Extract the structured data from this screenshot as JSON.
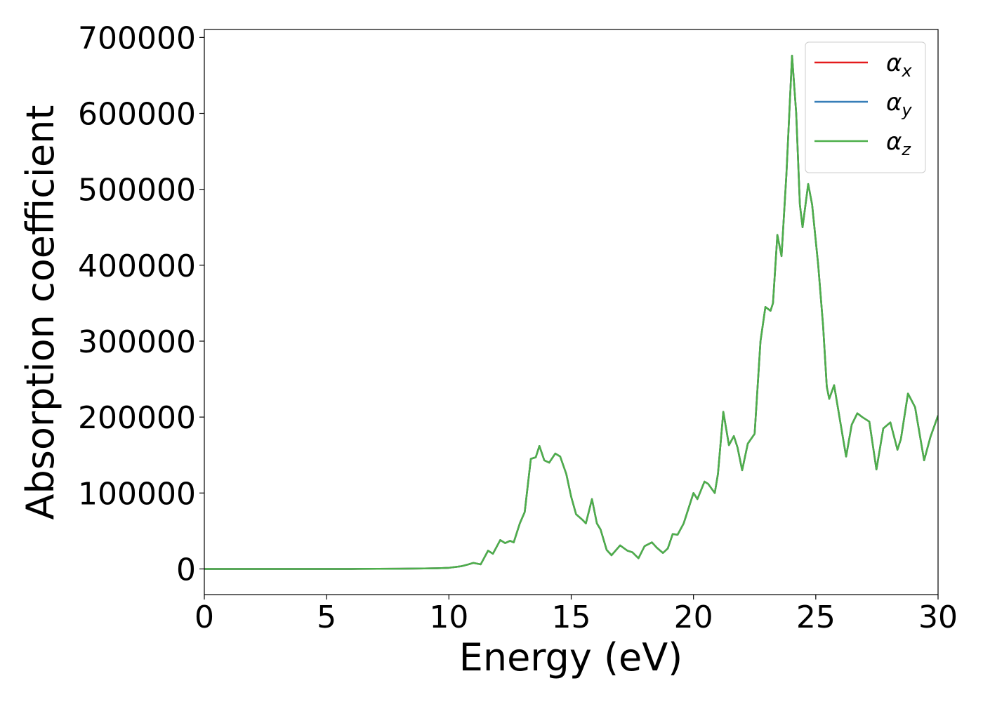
{
  "chart_data": {
    "type": "line",
    "x_label": "Energy (eV)",
    "y_label": "Absorption coefficient",
    "x": [
      0,
      2,
      4,
      6,
      8,
      9,
      9.5,
      10,
      10.5,
      10.8,
      11,
      11.3,
      11.6,
      11.8,
      12.1,
      12.3,
      12.5,
      12.65,
      12.9,
      13.1,
      13.35,
      13.55,
      13.7,
      13.9,
      14.1,
      14.35,
      14.55,
      14.8,
      15.0,
      15.2,
      15.45,
      15.6,
      15.85,
      16.05,
      16.2,
      16.45,
      16.65,
      17.0,
      17.3,
      17.5,
      17.75,
      18.0,
      18.3,
      18.5,
      18.75,
      18.95,
      19.15,
      19.35,
      19.6,
      19.8,
      20.0,
      20.16,
      20.45,
      20.6,
      20.87,
      21.0,
      21.22,
      21.45,
      21.65,
      21.8,
      21.99,
      22.22,
      22.5,
      22.74,
      22.94,
      23.15,
      23.25,
      23.43,
      23.6,
      23.8,
      24.03,
      24.2,
      24.35,
      24.46,
      24.69,
      24.85,
      25.1,
      25.3,
      25.45,
      25.55,
      25.75,
      26.0,
      26.24,
      26.47,
      26.7,
      26.9,
      27.19,
      27.48,
      27.76,
      28.05,
      28.34,
      28.48,
      28.77,
      29.06,
      29.43,
      29.69,
      30
    ],
    "series": [
      {
        "name": "αx",
        "color": "#e41a1c",
        "values": [
          0,
          0,
          0,
          0,
          300,
          600,
          900,
          1500,
          3500,
          6000,
          8000,
          6000,
          24000,
          20000,
          38000,
          34000,
          37000,
          35000,
          60000,
          75000,
          145000,
          147000,
          162000,
          143000,
          140000,
          152000,
          148000,
          125000,
          95000,
          72000,
          65000,
          60000,
          92000,
          60000,
          52000,
          25000,
          18000,
          31000,
          24000,
          22000,
          14000,
          30000,
          35000,
          28000,
          21000,
          27000,
          46000,
          45000,
          60000,
          80000,
          100000,
          92000,
          115000,
          112000,
          100000,
          125000,
          207000,
          163000,
          175000,
          160000,
          130000,
          165000,
          178000,
          300000,
          345000,
          340000,
          350000,
          440000,
          412000,
          520000,
          676000,
          600000,
          480000,
          450000,
          507000,
          480000,
          400000,
          320000,
          240000,
          224000,
          242000,
          194000,
          148000,
          190000,
          205000,
          200000,
          194000,
          131000,
          185000,
          193000,
          157000,
          171000,
          231000,
          213000,
          143000,
          174000,
          202000
        ]
      },
      {
        "name": "αy",
        "color": "#377eb8",
        "values": [
          0,
          0,
          0,
          0,
          300,
          600,
          900,
          1500,
          3500,
          6000,
          8000,
          6000,
          24000,
          20000,
          38000,
          34000,
          37000,
          35000,
          60000,
          75000,
          145000,
          147000,
          162000,
          143000,
          140000,
          152000,
          148000,
          125000,
          95000,
          72000,
          65000,
          60000,
          92000,
          60000,
          52000,
          25000,
          18000,
          31000,
          24000,
          22000,
          14000,
          30000,
          35000,
          28000,
          21000,
          27000,
          46000,
          45000,
          60000,
          80000,
          100000,
          92000,
          115000,
          112000,
          100000,
          125000,
          207000,
          163000,
          175000,
          160000,
          130000,
          165000,
          178000,
          300000,
          345000,
          340000,
          350000,
          440000,
          412000,
          520000,
          676000,
          600000,
          480000,
          450000,
          507000,
          480000,
          400000,
          320000,
          240000,
          224000,
          242000,
          194000,
          148000,
          190000,
          205000,
          200000,
          194000,
          131000,
          185000,
          193000,
          157000,
          171000,
          231000,
          213000,
          143000,
          174000,
          202000
        ]
      },
      {
        "name": "αz",
        "color": "#4daf4a",
        "values": [
          0,
          0,
          0,
          0,
          300,
          600,
          900,
          1500,
          3500,
          6000,
          8000,
          6000,
          24000,
          20000,
          38000,
          34000,
          37000,
          35000,
          60000,
          75000,
          145000,
          147000,
          162000,
          143000,
          140000,
          152000,
          148000,
          125000,
          95000,
          72000,
          65000,
          60000,
          92000,
          60000,
          52000,
          25000,
          18000,
          31000,
          24000,
          22000,
          14000,
          30000,
          35000,
          28000,
          21000,
          27000,
          46000,
          45000,
          60000,
          80000,
          100000,
          92000,
          115000,
          112000,
          100000,
          125000,
          207000,
          163000,
          175000,
          160000,
          130000,
          165000,
          178000,
          300000,
          345000,
          340000,
          350000,
          440000,
          412000,
          520000,
          676000,
          600000,
          480000,
          450000,
          507000,
          480000,
          400000,
          320000,
          240000,
          224000,
          242000,
          194000,
          148000,
          190000,
          205000,
          200000,
          194000,
          131000,
          185000,
          193000,
          157000,
          171000,
          231000,
          213000,
          143000,
          174000,
          202000
        ]
      }
    ],
    "xlim": [
      0,
      30
    ],
    "xticks": [
      0,
      5,
      10,
      15,
      20,
      25,
      30
    ],
    "ylim": [
      -33800,
      710500
    ],
    "yticks": [
      0,
      100000,
      200000,
      300000,
      400000,
      500000,
      600000,
      700000
    ],
    "grid": false,
    "legend": "upper right"
  }
}
